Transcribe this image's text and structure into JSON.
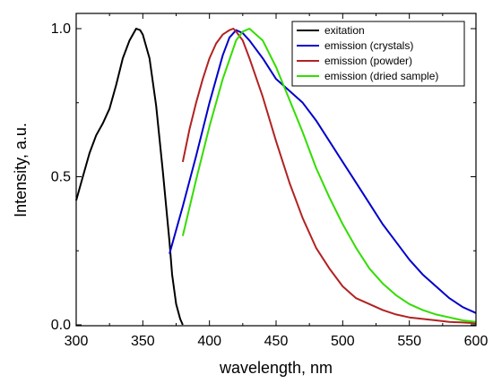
{
  "chart_data": {
    "type": "line",
    "xlabel": "wavelength, nm",
    "ylabel": "Intensity, a.u.",
    "xlim": [
      300,
      600
    ],
    "ylim": [
      0.0,
      1.0
    ],
    "x_ticks": [
      "300",
      "350",
      "400",
      "450",
      "500",
      "550",
      "600"
    ],
    "y_ticks": [
      "0.0",
      "0.5",
      "1.0"
    ],
    "grid": false,
    "legend_position": "top-right",
    "series": [
      {
        "name": "exitation",
        "color": "#000000",
        "x": [
          300,
          305,
          310,
          315,
          320,
          325,
          330,
          335,
          340,
          345,
          348,
          350,
          355,
          360,
          365,
          370,
          372,
          375,
          378,
          380
        ],
        "y": [
          0.42,
          0.5,
          0.58,
          0.64,
          0.68,
          0.73,
          0.81,
          0.9,
          0.96,
          1.0,
          0.995,
          0.98,
          0.9,
          0.74,
          0.52,
          0.28,
          0.17,
          0.07,
          0.02,
          0.0
        ]
      },
      {
        "name": "emission (crystals)",
        "color": "#0000cc",
        "x": [
          370,
          380,
          390,
          400,
          410,
          415,
          420,
          425,
          430,
          440,
          450,
          460,
          470,
          480,
          490,
          500,
          510,
          520,
          530,
          540,
          550,
          560,
          570,
          580,
          590,
          600
        ],
        "y": [
          0.24,
          0.4,
          0.57,
          0.75,
          0.91,
          0.97,
          0.995,
          0.985,
          0.96,
          0.9,
          0.83,
          0.79,
          0.75,
          0.69,
          0.62,
          0.55,
          0.48,
          0.41,
          0.34,
          0.28,
          0.22,
          0.17,
          0.13,
          0.09,
          0.06,
          0.04
        ]
      },
      {
        "name": "emission (powder)",
        "color": "#b22222",
        "x": [
          380,
          385,
          390,
          395,
          400,
          405,
          410,
          415,
          418,
          420,
          425,
          430,
          440,
          450,
          460,
          470,
          480,
          490,
          500,
          510,
          520,
          530,
          540,
          550,
          560,
          570,
          580,
          590,
          600
        ],
        "y": [
          0.55,
          0.66,
          0.75,
          0.83,
          0.9,
          0.95,
          0.98,
          0.995,
          1.0,
          0.99,
          0.96,
          0.9,
          0.77,
          0.62,
          0.48,
          0.36,
          0.26,
          0.19,
          0.13,
          0.09,
          0.07,
          0.05,
          0.035,
          0.025,
          0.02,
          0.015,
          0.01,
          0.008,
          0.005
        ]
      },
      {
        "name": "emission (dried sample)",
        "color": "#33dd00",
        "x": [
          380,
          390,
          400,
          410,
          420,
          425,
          430,
          440,
          450,
          460,
          470,
          480,
          490,
          500,
          510,
          520,
          530,
          540,
          550,
          560,
          570,
          580,
          590,
          600
        ],
        "y": [
          0.3,
          0.49,
          0.67,
          0.83,
          0.96,
          0.99,
          1.0,
          0.96,
          0.87,
          0.76,
          0.65,
          0.53,
          0.43,
          0.34,
          0.26,
          0.19,
          0.14,
          0.1,
          0.07,
          0.05,
          0.035,
          0.025,
          0.015,
          0.01
        ]
      }
    ]
  }
}
